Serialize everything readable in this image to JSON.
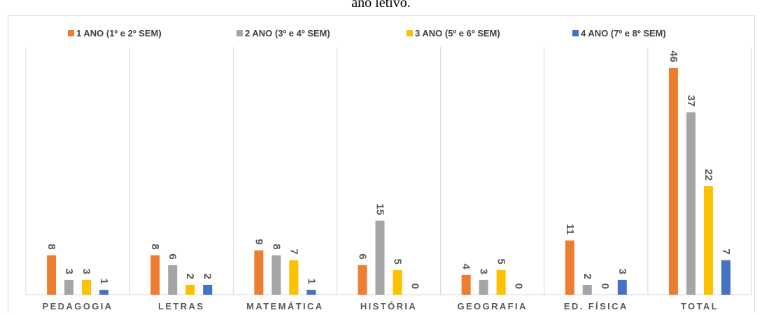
{
  "caption": "ano letivo.",
  "chart_data": {
    "type": "bar",
    "categories": [
      "PEDAGOGIA",
      "LETRAS",
      "MATEMÁTICA",
      "HISTÓRIA",
      "GEOGRAFIA",
      "ED. FÍSICA",
      "TOTAL"
    ],
    "series": [
      {
        "name": "1 ANO (1º e  2º SEM)",
        "color": "#ED7D31",
        "values": [
          8,
          8,
          9,
          6,
          4,
          11,
          46
        ]
      },
      {
        "name": "2 ANO (3º e 4º SEM)",
        "color": "#A5A5A5",
        "values": [
          3,
          6,
          8,
          15,
          3,
          2,
          37
        ]
      },
      {
        "name": "3 ANO (5º e 6º SEM)",
        "color": "#FFC000",
        "values": [
          3,
          2,
          7,
          5,
          5,
          0,
          22
        ]
      },
      {
        "name": "4 ANO (7º e 8º SEM)",
        "color": "#4472C4",
        "values": [
          1,
          2,
          1,
          0,
          0,
          3,
          7
        ]
      }
    ],
    "title": "",
    "xlabel": "",
    "ylabel": "",
    "ylim": [
      0,
      46
    ],
    "legend": "top",
    "grid": false,
    "data_labels": true,
    "data_label_rotation": "vertical"
  }
}
